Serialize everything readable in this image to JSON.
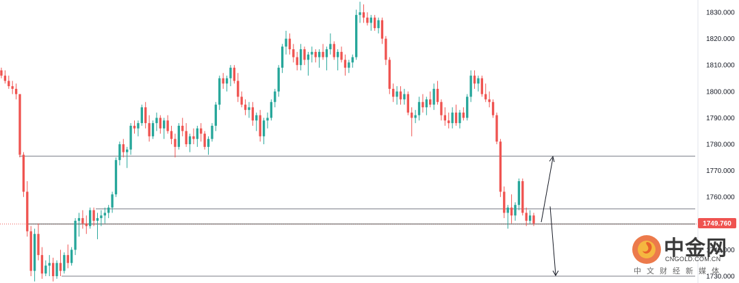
{
  "chart_data": {
    "type": "candlestick",
    "ylim": [
      1730,
      1835
    ],
    "y_ticks": [
      "1730.000",
      "1740.000",
      "1750.000",
      "1760.000",
      "1770.000",
      "1780.000",
      "1790.000",
      "1800.000",
      "1810.000",
      "1820.000",
      "1830.000"
    ],
    "current_price_label": "1749.760",
    "current_price": 1749.76,
    "horizontal_levels": [
      1775.5,
      1755.5,
      1749.76,
      1730.0
    ],
    "colors": {
      "up": "#26a69a",
      "down": "#ef5350",
      "grid_line": "#787b86",
      "price_line": "#ef5350"
    },
    "candles_ohlc": [
      [
        1808,
        1809,
        1805,
        1806
      ],
      [
        1806,
        1808,
        1803,
        1804
      ],
      [
        1804,
        1806,
        1801,
        1802
      ],
      [
        1802,
        1804,
        1799,
        1801
      ],
      [
        1801,
        1803,
        1797,
        1799
      ],
      [
        1799,
        1799,
        1775,
        1776
      ],
      [
        1776,
        1777,
        1760,
        1762
      ],
      [
        1762,
        1766,
        1745,
        1747
      ],
      [
        1747,
        1749,
        1730,
        1732
      ],
      [
        1732,
        1748,
        1728,
        1746
      ],
      [
        1746,
        1750,
        1736,
        1738
      ],
      [
        1738,
        1741,
        1729,
        1731
      ],
      [
        1731,
        1736,
        1730,
        1734
      ],
      [
        1734,
        1738,
        1730,
        1735
      ],
      [
        1735,
        1737,
        1728,
        1730
      ],
      [
        1730,
        1736,
        1729,
        1735
      ],
      [
        1735,
        1740,
        1730,
        1732
      ],
      [
        1732,
        1739,
        1731,
        1738
      ],
      [
        1738,
        1742,
        1733,
        1735
      ],
      [
        1735,
        1741,
        1734,
        1740
      ],
      [
        1740,
        1752,
        1738,
        1751
      ],
      [
        1751,
        1754,
        1745,
        1752
      ],
      [
        1752,
        1755,
        1748,
        1750
      ],
      [
        1750,
        1753,
        1746,
        1749
      ],
      [
        1749,
        1756,
        1748,
        1755
      ],
      [
        1755,
        1756,
        1749,
        1751
      ],
      [
        1751,
        1754,
        1744,
        1752
      ],
      [
        1752,
        1755,
        1749,
        1753
      ],
      [
        1753,
        1756,
        1750,
        1754
      ],
      [
        1754,
        1757,
        1752,
        1756
      ],
      [
        1756,
        1762,
        1754,
        1761
      ],
      [
        1761,
        1775,
        1760,
        1774
      ],
      [
        1774,
        1781,
        1772,
        1780
      ],
      [
        1780,
        1782,
        1775,
        1777
      ],
      [
        1777,
        1779,
        1771,
        1778
      ],
      [
        1778,
        1788,
        1776,
        1787
      ],
      [
        1787,
        1789,
        1784,
        1786
      ],
      [
        1786,
        1789,
        1783,
        1788
      ],
      [
        1788,
        1795,
        1787,
        1794
      ],
      [
        1794,
        1796,
        1786,
        1788
      ],
      [
        1788,
        1791,
        1781,
        1783
      ],
      [
        1783,
        1789,
        1782,
        1788
      ],
      [
        1788,
        1792,
        1785,
        1790
      ],
      [
        1790,
        1791,
        1784,
        1786
      ],
      [
        1786,
        1790,
        1782,
        1789
      ],
      [
        1789,
        1791,
        1784,
        1785
      ],
      [
        1785,
        1787,
        1780,
        1782
      ],
      [
        1782,
        1784,
        1775,
        1779
      ],
      [
        1779,
        1788,
        1778,
        1787
      ],
      [
        1787,
        1790,
        1783,
        1785
      ],
      [
        1785,
        1788,
        1779,
        1780
      ],
      [
        1780,
        1784,
        1777,
        1783
      ],
      [
        1783,
        1786,
        1780,
        1782
      ],
      [
        1782,
        1787,
        1779,
        1786
      ],
      [
        1786,
        1788,
        1781,
        1784
      ],
      [
        1784,
        1785,
        1778,
        1779
      ],
      [
        1779,
        1783,
        1776,
        1782
      ],
      [
        1782,
        1788,
        1781,
        1787
      ],
      [
        1787,
        1796,
        1785,
        1795
      ],
      [
        1795,
        1806,
        1793,
        1805
      ],
      [
        1805,
        1807,
        1801,
        1803
      ],
      [
        1803,
        1806,
        1800,
        1805
      ],
      [
        1805,
        1810,
        1802,
        1809
      ],
      [
        1809,
        1810,
        1803,
        1804
      ],
      [
        1804,
        1807,
        1796,
        1798
      ],
      [
        1798,
        1800,
        1794,
        1795
      ],
      [
        1795,
        1797,
        1791,
        1793
      ],
      [
        1793,
        1796,
        1790,
        1794
      ],
      [
        1794,
        1796,
        1787,
        1789
      ],
      [
        1789,
        1792,
        1785,
        1791
      ],
      [
        1791,
        1793,
        1781,
        1783
      ],
      [
        1783,
        1790,
        1780,
        1789
      ],
      [
        1789,
        1792,
        1786,
        1790
      ],
      [
        1790,
        1797,
        1789,
        1796
      ],
      [
        1796,
        1801,
        1794,
        1800
      ],
      [
        1800,
        1810,
        1798,
        1809
      ],
      [
        1809,
        1818,
        1807,
        1817
      ],
      [
        1817,
        1823,
        1814,
        1820
      ],
      [
        1820,
        1822,
        1814,
        1816
      ],
      [
        1816,
        1818,
        1811,
        1813
      ],
      [
        1813,
        1815,
        1808,
        1810
      ],
      [
        1810,
        1818,
        1808,
        1816
      ],
      [
        1816,
        1817,
        1810,
        1812
      ],
      [
        1812,
        1815,
        1806,
        1814
      ],
      [
        1814,
        1817,
        1811,
        1815
      ],
      [
        1815,
        1816,
        1811,
        1813
      ],
      [
        1813,
        1816,
        1809,
        1815
      ],
      [
        1815,
        1818,
        1812,
        1813
      ],
      [
        1813,
        1817,
        1808,
        1816
      ],
      [
        1816,
        1822,
        1814,
        1818
      ],
      [
        1818,
        1819,
        1812,
        1813
      ],
      [
        1813,
        1816,
        1808,
        1815
      ],
      [
        1815,
        1817,
        1811,
        1812
      ],
      [
        1812,
        1814,
        1806,
        1809
      ],
      [
        1809,
        1812,
        1807,
        1811
      ],
      [
        1811,
        1814,
        1809,
        1813
      ],
      [
        1813,
        1831,
        1812,
        1829
      ],
      [
        1829,
        1834,
        1826,
        1830
      ],
      [
        1830,
        1833,
        1826,
        1828
      ],
      [
        1828,
        1830,
        1825,
        1826
      ],
      [
        1826,
        1829,
        1823,
        1828
      ],
      [
        1828,
        1829,
        1823,
        1824
      ],
      [
        1824,
        1828,
        1822,
        1827
      ],
      [
        1827,
        1828,
        1818,
        1820
      ],
      [
        1820,
        1821,
        1810,
        1812
      ],
      [
        1812,
        1813,
        1799,
        1801
      ],
      [
        1801,
        1803,
        1796,
        1798
      ],
      [
        1798,
        1802,
        1795,
        1800
      ],
      [
        1800,
        1802,
        1795,
        1797
      ],
      [
        1797,
        1801,
        1795,
        1799
      ],
      [
        1799,
        1800,
        1791,
        1792
      ],
      [
        1792,
        1794,
        1783,
        1790
      ],
      [
        1790,
        1793,
        1788,
        1791
      ],
      [
        1791,
        1798,
        1789,
        1796
      ],
      [
        1796,
        1799,
        1792,
        1794
      ],
      [
        1794,
        1798,
        1791,
        1797
      ],
      [
        1797,
        1800,
        1794,
        1795
      ],
      [
        1795,
        1803,
        1793,
        1801
      ],
      [
        1801,
        1804,
        1795,
        1796
      ],
      [
        1796,
        1797,
        1789,
        1791
      ],
      [
        1791,
        1794,
        1787,
        1789
      ],
      [
        1789,
        1792,
        1786,
        1788
      ],
      [
        1788,
        1794,
        1786,
        1792
      ],
      [
        1792,
        1795,
        1787,
        1788
      ],
      [
        1788,
        1793,
        1786,
        1792
      ],
      [
        1792,
        1794,
        1789,
        1790
      ],
      [
        1790,
        1799,
        1789,
        1798
      ],
      [
        1798,
        1808,
        1796,
        1806
      ],
      [
        1806,
        1808,
        1801,
        1803
      ],
      [
        1803,
        1806,
        1800,
        1805
      ],
      [
        1805,
        1806,
        1798,
        1799
      ],
      [
        1799,
        1803,
        1796,
        1797
      ],
      [
        1797,
        1800,
        1794,
        1796
      ],
      [
        1796,
        1797,
        1790,
        1791
      ],
      [
        1791,
        1792,
        1780,
        1781
      ],
      [
        1781,
        1782,
        1760,
        1762
      ],
      [
        1762,
        1764,
        1752,
        1754
      ],
      [
        1754,
        1757,
        1748,
        1756
      ],
      [
        1756,
        1761,
        1750,
        1753
      ],
      [
        1753,
        1758,
        1751,
        1757
      ],
      [
        1757,
        1767,
        1755,
        1766
      ],
      [
        1766,
        1767,
        1753,
        1754
      ],
      [
        1754,
        1756,
        1749,
        1751
      ],
      [
        1751,
        1755,
        1750,
        1753
      ],
      [
        1753,
        1754,
        1749,
        1750
      ]
    ]
  },
  "watermark": {
    "name_cn": "中金网",
    "domain": "CNGOLD.COM.CN",
    "tagline": "中文财经新媒体"
  }
}
